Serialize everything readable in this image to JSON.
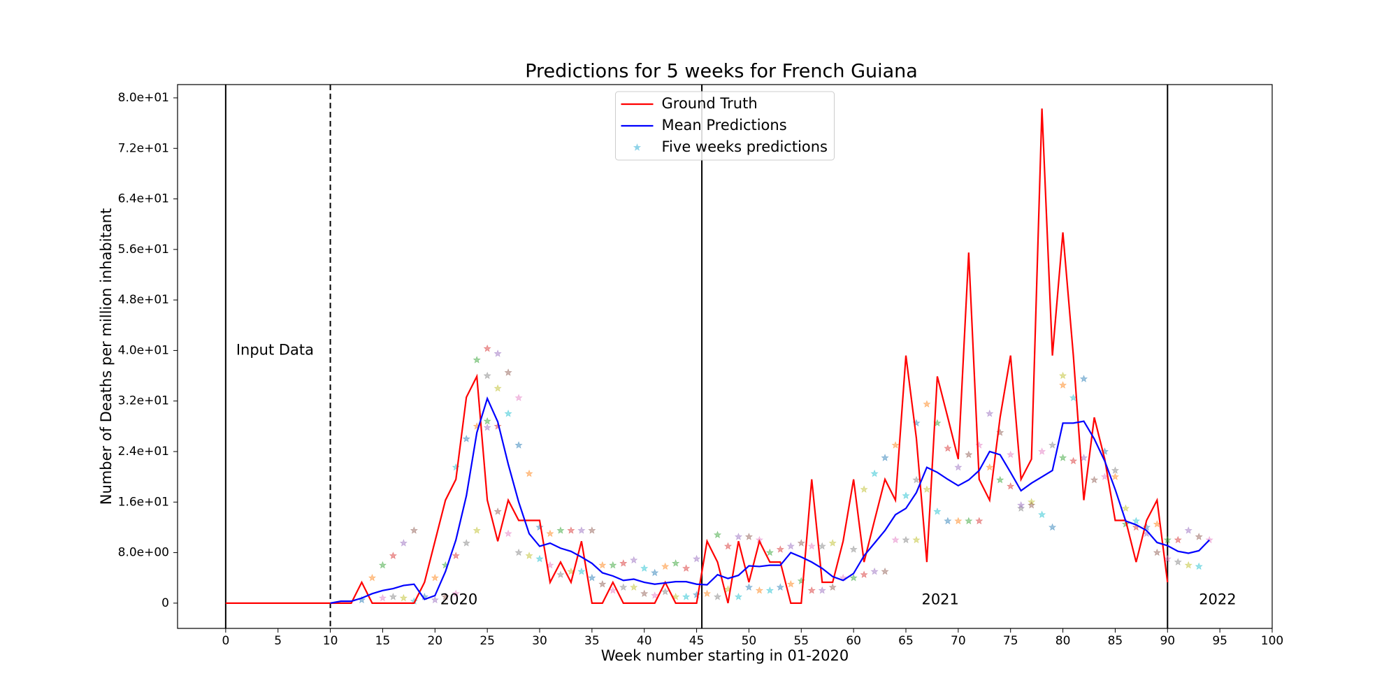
{
  "chart_data": {
    "type": "line",
    "title": "Predictions for 5 weeks for French Guiana",
    "x_label": "Week number starting in 01-2020",
    "y_label": "Number of Deaths per million inhabitant",
    "xlim": [
      -4.6,
      100
    ],
    "ylim": [
      -4,
      82.1
    ],
    "xticks": [
      0,
      5,
      10,
      15,
      20,
      25,
      30,
      35,
      40,
      45,
      50,
      55,
      60,
      65,
      70,
      75,
      80,
      85,
      90,
      95,
      100
    ],
    "yticks": [
      0,
      {
        "value": 8,
        "label": "8.0e+00"
      },
      {
        "value": 16,
        "label": "1.6e+01"
      },
      {
        "value": 24,
        "label": "2.4e+01"
      },
      {
        "value": 32,
        "label": "3.2e+01"
      },
      {
        "value": 40,
        "label": "4.0e+01"
      },
      {
        "value": 48,
        "label": "4.8e+01"
      },
      {
        "value": 56,
        "label": "5.6e+01"
      },
      {
        "value": 64,
        "label": "6.4e+01"
      },
      {
        "value": 72,
        "label": "7.2e+01"
      },
      {
        "value": 80,
        "label": "8.0e+01"
      }
    ],
    "legend": "upper center",
    "vlines": [
      {
        "x": 0,
        "style": "solid"
      },
      {
        "x": 10,
        "style": "dashed"
      },
      {
        "x": 45.5,
        "style": "solid"
      },
      {
        "x": 90,
        "style": "solid"
      }
    ],
    "annotations": [
      {
        "text": "Input Data",
        "x": 1,
        "y": 40
      },
      {
        "text": "2020",
        "x": 20.5,
        "y": 0.5
      },
      {
        "text": "2021",
        "x": 66.5,
        "y": 0.5
      },
      {
        "text": "2022",
        "x": 93,
        "y": 0.5
      }
    ],
    "series": [
      {
        "name": "Ground Truth",
        "kind": "line",
        "color": "#ff0000",
        "x": [
          0,
          1,
          2,
          3,
          4,
          5,
          6,
          7,
          8,
          9,
          10,
          11,
          12,
          13,
          14,
          15,
          16,
          17,
          18,
          19,
          20,
          21,
          22,
          23,
          24,
          25,
          26,
          27,
          28,
          29,
          30,
          31,
          32,
          33,
          34,
          35,
          36,
          37,
          38,
          39,
          40,
          41,
          42,
          43,
          44,
          45,
          46,
          47,
          48,
          49,
          50,
          51,
          52,
          53,
          54,
          55,
          56,
          57,
          58,
          59,
          60,
          61,
          62,
          63,
          64,
          65,
          66,
          67,
          68,
          69,
          70,
          71,
          72,
          73,
          74,
          75,
          76,
          77,
          78,
          79,
          80,
          81,
          82,
          83,
          84,
          85,
          86,
          87,
          88,
          89,
          90
        ],
        "values": [
          0,
          0,
          0,
          0,
          0,
          0,
          0,
          0,
          0,
          0,
          0,
          0,
          0,
          3.3,
          0,
          0,
          0,
          0,
          0,
          3.3,
          9.8,
          16.3,
          19.6,
          32.6,
          35.9,
          16.3,
          9.8,
          16.3,
          13.1,
          13.1,
          13.1,
          3.3,
          6.5,
          3.3,
          9.8,
          0,
          0,
          3.3,
          0,
          0,
          0,
          0,
          3.3,
          0,
          0,
          0,
          9.8,
          6.5,
          0,
          9.8,
          3.3,
          9.8,
          6.5,
          6.5,
          0,
          0,
          19.6,
          3.3,
          3.3,
          9.8,
          19.6,
          6.5,
          13.1,
          19.6,
          16.3,
          39.2,
          26.1,
          6.5,
          35.9,
          29.4,
          22.8,
          55.5,
          19.6,
          16.3,
          29.4,
          39.2,
          19.6,
          22.8,
          78.3,
          39.2,
          58.7,
          39.2,
          16.3,
          29.4,
          22.8,
          13.1,
          13.1,
          6.5,
          13.1,
          16.3,
          3.3
        ]
      },
      {
        "name": "Mean Predictions",
        "kind": "line",
        "color": "#0000ff",
        "x": [
          10,
          11,
          12,
          13,
          14,
          15,
          16,
          17,
          18,
          19,
          20,
          21,
          22,
          23,
          24,
          25,
          26,
          27,
          28,
          29,
          30,
          31,
          32,
          33,
          34,
          35,
          36,
          37,
          38,
          39,
          40,
          41,
          42,
          43,
          44,
          45,
          46,
          47,
          48,
          49,
          50,
          51,
          52,
          53,
          54,
          55,
          56,
          57,
          58,
          59,
          60,
          61,
          62,
          63,
          64,
          65,
          66,
          67,
          68,
          69,
          70,
          71,
          72,
          73,
          74,
          75,
          76,
          77,
          78,
          79,
          80,
          81,
          82,
          83,
          84,
          85,
          86,
          87,
          88,
          89,
          90,
          91,
          92,
          93,
          94
        ],
        "values": [
          0,
          0.3,
          0.3,
          0.8,
          1.5,
          2,
          2.3,
          2.8,
          3,
          0.6,
          1.2,
          5,
          10,
          17,
          27,
          32.4,
          28.7,
          22,
          16,
          11,
          9,
          9.5,
          8.7,
          8.2,
          7.3,
          6.3,
          4.8,
          4.3,
          3.6,
          3.8,
          3.3,
          3,
          3.2,
          3.4,
          3.4,
          3,
          2.9,
          4.5,
          3.9,
          4.4,
          5.9,
          5.8,
          6,
          6,
          8,
          7.3,
          6.5,
          5.5,
          4.2,
          3.6,
          4.7,
          7.5,
          9.5,
          11.5,
          14,
          15,
          17.5,
          21.5,
          20.7,
          19.6,
          18.6,
          19.5,
          21,
          24,
          23.5,
          20.7,
          17.8,
          19,
          20,
          21,
          28.5,
          28.5,
          28.8,
          26,
          22.5,
          18,
          13,
          12.4,
          11.5,
          9.6,
          9.1,
          8.2,
          7.9,
          8.3,
          10
        ]
      },
      {
        "name": "Five weeks predictions",
        "kind": "scatter",
        "color": "#8fd3e8",
        "palette": [
          "#1f77b4",
          "#ff7f0e",
          "#2ca02c",
          "#d62728",
          "#9467bd",
          "#8c564b",
          "#e377c2",
          "#7f7f7f",
          "#bcbd22",
          "#17becf"
        ],
        "x": [
          13,
          14,
          15,
          16,
          17,
          18,
          15,
          16,
          17,
          18,
          19,
          20,
          21,
          22,
          20,
          21,
          22,
          23,
          24,
          22,
          23,
          24,
          24,
          25,
          26,
          27,
          28,
          25,
          26,
          27,
          28,
          29,
          25,
          26,
          25,
          26,
          27,
          28,
          29,
          30,
          30,
          31,
          32,
          33,
          34,
          35,
          31,
          32,
          33,
          34,
          35,
          36,
          37,
          38,
          39,
          36,
          37,
          38,
          39,
          40,
          41,
          42,
          43,
          44,
          45,
          40,
          41,
          42,
          43,
          44,
          45,
          46,
          47,
          48,
          49,
          50,
          51,
          47,
          48,
          49,
          50,
          51,
          52,
          53,
          54,
          55,
          56,
          57,
          58,
          52,
          53,
          54,
          55,
          56,
          57,
          58,
          59,
          60,
          61,
          62,
          63,
          64,
          60,
          61,
          62,
          63,
          64,
          65,
          66,
          65,
          66,
          67,
          68,
          69,
          70,
          71,
          72,
          66,
          67,
          68,
          69,
          70,
          71,
          72,
          73,
          74,
          75,
          76,
          77,
          78,
          79,
          73,
          74,
          75,
          76,
          77,
          78,
          79,
          80,
          81,
          82,
          80,
          80,
          81,
          82,
          83,
          84,
          85,
          86,
          87,
          84,
          85,
          86,
          87,
          88,
          89,
          90,
          91,
          92,
          93,
          88,
          89,
          90,
          91,
          92,
          93,
          94
        ],
        "values": [
          0.5,
          4,
          6,
          7.5,
          9.5,
          11.5,
          0.8,
          1,
          0.8,
          0.3,
          1,
          4,
          6,
          7.5,
          0.5,
          1,
          1.5,
          9.5,
          11.5,
          21.5,
          26,
          28,
          38.5,
          40.3,
          39.5,
          36.5,
          32.5,
          36,
          34,
          30,
          25,
          20.5,
          28.8,
          28,
          27.8,
          14.5,
          11,
          8,
          7.5,
          7,
          12,
          11,
          11.5,
          11.5,
          11.5,
          11.5,
          6,
          4.5,
          5,
          5,
          4,
          6,
          6,
          6.3,
          6.8,
          3,
          2,
          2.5,
          2.5,
          5.5,
          4.8,
          5.8,
          6.3,
          5.5,
          7,
          1.5,
          1.2,
          1.8,
          1,
          1,
          1.3,
          1.5,
          10.8,
          9,
          10.5,
          10.5,
          10,
          1,
          2.2,
          1,
          2.5,
          2,
          8,
          8.5,
          9,
          9.5,
          9,
          9,
          9.5,
          2,
          2.5,
          3,
          3.5,
          2,
          2,
          2.5,
          4,
          8.5,
          18,
          20.5,
          23,
          25,
          4,
          4.5,
          5,
          5,
          10,
          10,
          10,
          17,
          28.5,
          31.5,
          28.5,
          24.5,
          21.5,
          23.5,
          25,
          19.5,
          18,
          14.5,
          13,
          13,
          13,
          13,
          30,
          27,
          23.5,
          15,
          16,
          14,
          12,
          21.5,
          19.5,
          18.5,
          15.5,
          15.5,
          24,
          25,
          36,
          32.5,
          35.5,
          34.5,
          23,
          22.5,
          23,
          19.5,
          20,
          21,
          15,
          13,
          24,
          20,
          12.5,
          12,
          11,
          8,
          7,
          6.5,
          6,
          5.8,
          12,
          12.5,
          10,
          10,
          11.5,
          10.5,
          10
        ]
      }
    ]
  }
}
